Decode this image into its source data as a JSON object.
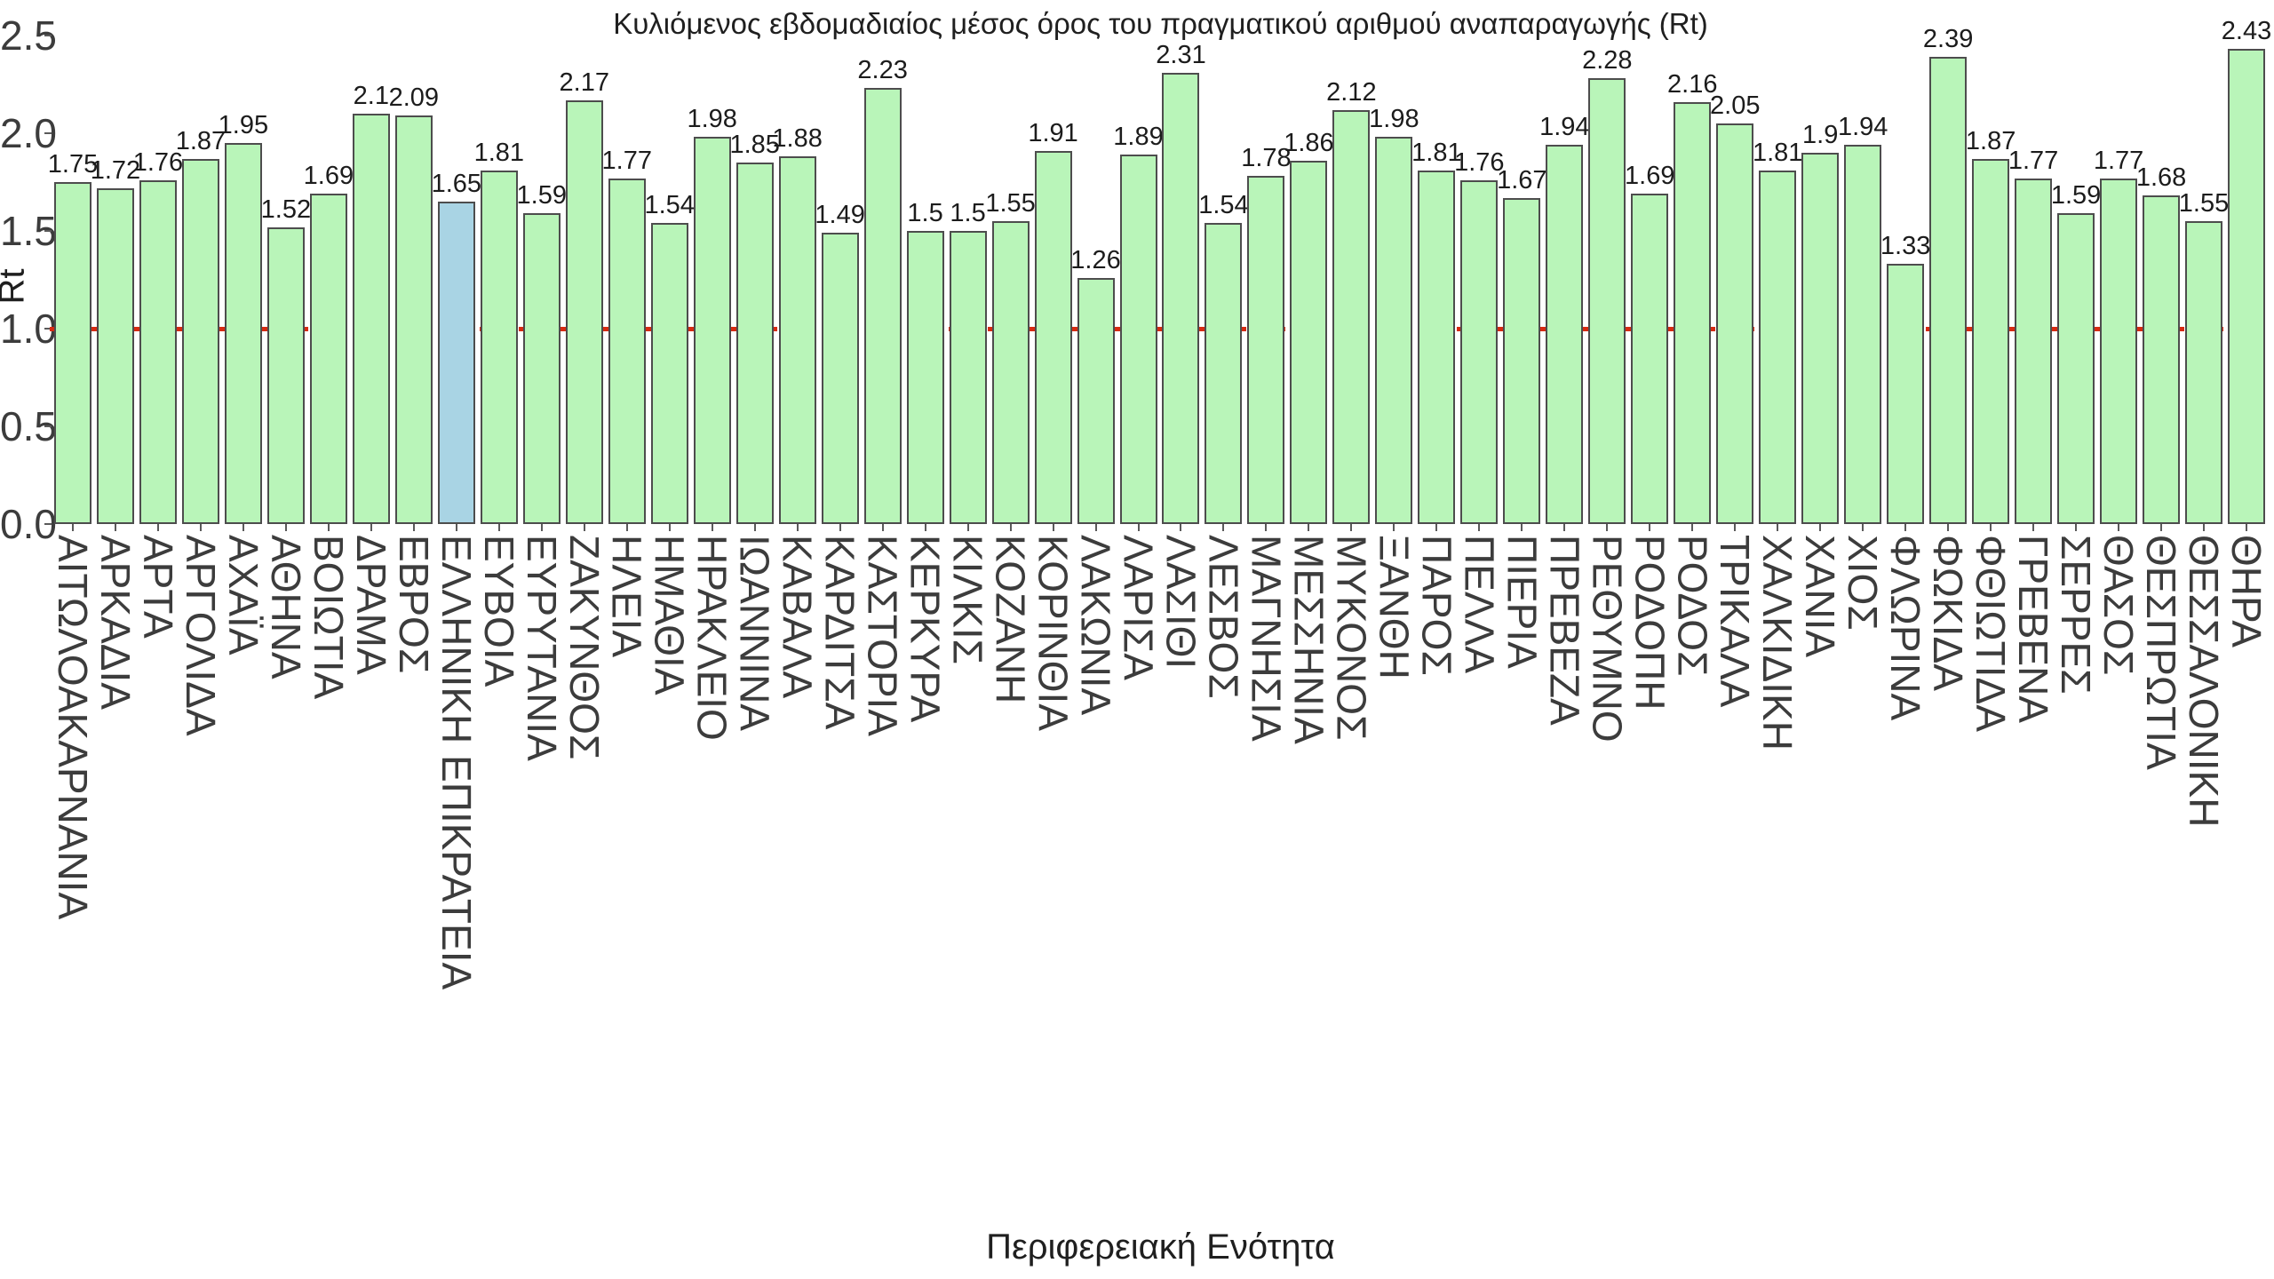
{
  "title": "Κυλιόμενος εβδομαδιαίος μέσος όρος του πραγματικού αριθμού αναπαραγωγής (Rt)",
  "y_axis": {
    "label": "Rt",
    "ticks": [
      "0.0",
      "0.5",
      "1.0",
      "1.5",
      "2.0",
      "2.5"
    ]
  },
  "x_axis": {
    "label": "Περιφερειακή Ενότητα"
  },
  "reference_line": {
    "value": 1.0,
    "color": "#d62a12",
    "style": "dashed"
  },
  "colors": {
    "bar_fill": "#b9f5b9",
    "bar_edge": "#4d4d4d",
    "highlight_fill": "#a9d4e4",
    "tick_text": "#3c3c3c",
    "background": "#ffffff"
  },
  "chart_data": {
    "type": "bar",
    "title": "Κυλιόμενος εβδομαδιαίος μέσος όρος του πραγματικού αριθμού αναπαραγωγής (Rt)",
    "xlabel": "Περιφερειακή Ενότητα",
    "ylabel": "Rt",
    "ylim": [
      0,
      2.5
    ],
    "grid": false,
    "legend": false,
    "highlight_index": 9,
    "highlight_category": "ΕΛΛΗΝΙΚΗ ΕΠΙΚΡΑΤΕΙΑ",
    "categories": [
      "ΑΙΤΩΛΟΑΚΑΡΝΑΝΙΑ",
      "ΑΡΚΑΔΙΑ",
      "ΑΡΤΑ",
      "ΑΡΓΟΛΙΔΑ",
      "ΑΧΑΪΑ",
      "ΑΘΗΝΑ",
      "ΒΟΙΩΤΙΑ",
      "ΔΡΑΜΑ",
      "ΕΒΡΟΣ",
      "ΕΛΛΗΝΙΚΗ ΕΠΙΚΡΑΤΕΙΑ",
      "ΕΥΒΟΙΑ",
      "ΕΥΡΥΤΑΝΙΑ",
      "ΖΑΚΥΝΘΟΣ",
      "ΗΛΕΙΑ",
      "ΗΜΑΘΙΑ",
      "ΗΡΑΚΛΕΙΟ",
      "ΙΩΑΝΝΙΝΑ",
      "ΚΑΒΑΛΑ",
      "ΚΑΡΔΙΤΣΑ",
      "ΚΑΣΤΟΡΙΑ",
      "ΚΕΡΚΥΡΑ",
      "ΚΙΛΚΙΣ",
      "ΚΟΖΑΝΗ",
      "ΚΟΡΙΝΘΙΑ",
      "ΛΑΚΩΝΙΑ",
      "ΛΑΡΙΣΑ",
      "ΛΑΣΙΘΙ",
      "ΛΕΣΒΟΣ",
      "ΜΑΓΝΗΣΙΑ",
      "ΜΕΣΣΗΝΙΑ",
      "ΜΥΚΟΝΟΣ",
      "ΞΑΝΘΗ",
      "ΠΑΡΟΣ",
      "ΠΕΛΛΑ",
      "ΠΙΕΡΙΑ",
      "ΠΡΕΒΕΖΑ",
      "ΡΕΘΥΜΝΟ",
      "ΡΟΔΟΠΗ",
      "ΡΟΔΟΣ",
      "ΤΡΙΚΑΛΑ",
      "ΧΑΛΚΙΔΙΚΗ",
      "ΧΑΝΙΑ",
      "ΧΙΟΣ",
      "ΦΛΩΡΙΝΑ",
      "ΦΩΚΙΔΑ",
      "ΦΘΙΩΤΙΔΑ",
      "ΓΡΕΒΕΝΑ",
      "ΣΕΡΡΕΣ",
      "ΘΑΣΟΣ",
      "ΘΕΣΠΡΩΤΙΑ",
      "ΘΕΣΣΑΛΟΝΙΚΗ",
      "ΘΗΡΑ"
    ],
    "values": [
      1.75,
      1.72,
      1.76,
      1.87,
      1.95,
      1.52,
      1.69,
      2.1,
      2.09,
      1.65,
      1.81,
      1.59,
      2.17,
      1.77,
      1.54,
      1.98,
      1.85,
      1.88,
      1.49,
      2.23,
      1.5,
      1.5,
      1.55,
      1.91,
      1.26,
      1.89,
      2.31,
      1.54,
      1.78,
      1.86,
      2.12,
      1.98,
      1.81,
      1.76,
      1.67,
      1.94,
      2.28,
      1.69,
      2.16,
      2.05,
      1.81,
      1.9,
      1.94,
      1.33,
      2.39,
      1.87,
      1.77,
      1.59,
      1.77,
      1.68,
      1.55,
      2.43
    ],
    "value_labels": [
      "1.75",
      "1.72",
      "1.76",
      "1.87",
      "1.95",
      "1.52",
      "1.69",
      "2.1",
      "2.09",
      "1.65",
      "1.81",
      "1.59",
      "2.17",
      "1.77",
      "1.54",
      "1.98",
      "1.85",
      "1.88",
      "1.49",
      "2.23",
      "1.5",
      "1.5",
      "1.55",
      "1.91",
      "1.26",
      "1.89",
      "2.31",
      "1.54",
      "1.78",
      "1.86",
      "2.12",
      "1.98",
      "1.81",
      "1.76",
      "1.67",
      "1.94",
      "2.28",
      "1.69",
      "2.16",
      "2.05",
      "1.81",
      "1.9",
      "1.94",
      "1.33",
      "2.39",
      "1.87",
      "1.77",
      "1.59",
      "1.77",
      "1.68",
      "1.55",
      "2.43"
    ]
  }
}
